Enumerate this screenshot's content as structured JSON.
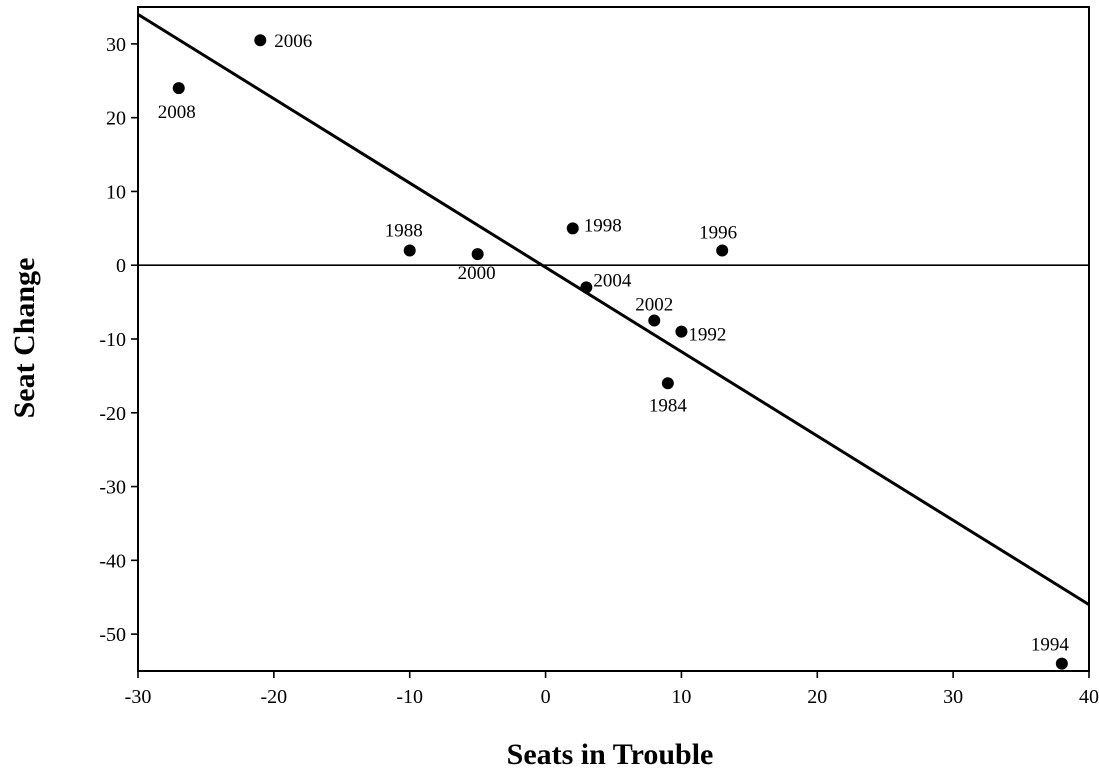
{
  "chart_data": {
    "type": "scatter",
    "xlabel": "Seats in Trouble",
    "ylabel": "Seat Change",
    "xlim": [
      -30,
      40
    ],
    "ylim": [
      -55,
      35
    ],
    "xticks": [
      -30,
      -20,
      -10,
      0,
      10,
      20,
      30,
      40
    ],
    "yticks": [
      30,
      20,
      10,
      0,
      -10,
      -20,
      -30,
      -40,
      -50
    ],
    "grid": false,
    "reference_line_y": 0,
    "trend_line": {
      "x": [
        -30,
        40
      ],
      "y": [
        34,
        -46
      ]
    },
    "points": [
      {
        "label": "2006",
        "x": -21,
        "y": 30.5
      },
      {
        "label": "2008",
        "x": -27,
        "y": 24
      },
      {
        "label": "1988",
        "x": -10,
        "y": 2
      },
      {
        "label": "2000",
        "x": -5,
        "y": 1.5
      },
      {
        "label": "1998",
        "x": 2,
        "y": 5
      },
      {
        "label": "1996",
        "x": 13,
        "y": 2
      },
      {
        "label": "2004",
        "x": 3,
        "y": -3
      },
      {
        "label": "2002",
        "x": 8,
        "y": -7.5
      },
      {
        "label": "1992",
        "x": 10,
        "y": -9
      },
      {
        "label": "1984",
        "x": 9,
        "y": -16
      },
      {
        "label": "1994",
        "x": 38,
        "y": -54
      }
    ]
  }
}
